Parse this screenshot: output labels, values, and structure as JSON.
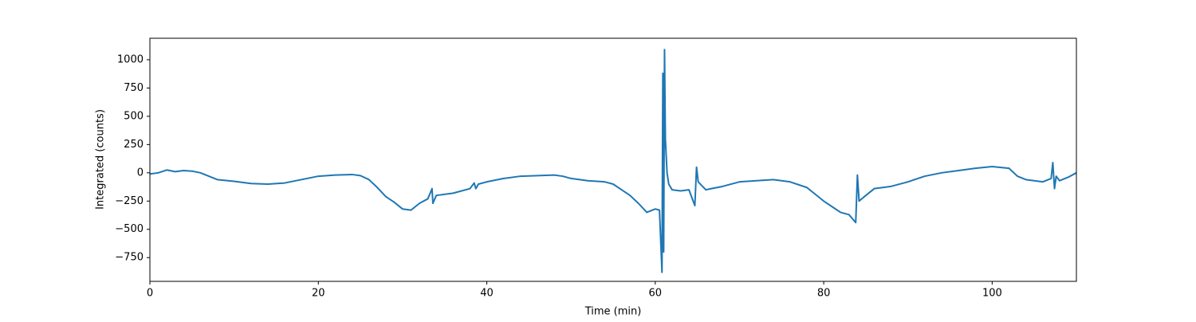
{
  "chart_data": {
    "type": "line",
    "xlabel": "Time (min)",
    "ylabel": "Integrated (counts)",
    "color": "#1f77b4",
    "x": [
      0,
      1,
      2,
      3,
      4,
      5,
      6,
      7,
      8,
      10,
      12,
      14,
      16,
      18,
      20,
      22,
      24,
      25,
      26,
      27,
      28,
      29,
      30,
      31,
      32,
      33,
      33.5,
      33.6,
      34,
      36,
      38,
      38.5,
      38.7,
      39,
      40,
      42,
      44,
      46,
      48,
      49,
      50,
      52,
      54,
      55,
      56,
      57,
      58,
      59,
      60,
      60.5,
      60.8,
      60.9,
      61.0,
      61.1,
      61.2,
      61.4,
      61.6,
      62,
      63,
      64,
      64.7,
      64.9,
      65.1,
      66,
      68,
      70,
      72,
      74,
      76,
      78,
      80,
      81,
      82,
      83,
      83.8,
      84,
      84.2,
      85,
      86,
      88,
      90,
      92,
      94,
      96,
      98,
      100,
      102,
      103,
      104,
      106,
      107,
      107.2,
      107.4,
      107.6,
      108,
      109,
      110
    ],
    "values": [
      -10,
      0,
      25,
      10,
      20,
      15,
      0,
      -30,
      -60,
      -75,
      -95,
      -100,
      -90,
      -60,
      -30,
      -20,
      -15,
      -25,
      -60,
      -130,
      -210,
      -260,
      -320,
      -330,
      -270,
      -230,
      -140,
      -270,
      -200,
      -180,
      -140,
      -90,
      -140,
      -100,
      -80,
      -50,
      -30,
      -25,
      -20,
      -30,
      -50,
      -70,
      -80,
      -100,
      -150,
      -200,
      -270,
      -350,
      -320,
      -330,
      -880,
      880,
      -700,
      1090,
      300,
      0,
      -100,
      -150,
      -160,
      -150,
      -290,
      50,
      -80,
      -150,
      -120,
      -80,
      -70,
      -60,
      -80,
      -130,
      -250,
      -300,
      -350,
      -370,
      -440,
      -20,
      -250,
      -200,
      -140,
      -120,
      -80,
      -30,
      0,
      20,
      40,
      55,
      40,
      -30,
      -60,
      -80,
      -50,
      90,
      -140,
      -30,
      -70,
      -40,
      0
    ],
    "xlim": [
      0,
      110
    ],
    "xticks": [
      0,
      20,
      40,
      60,
      80,
      100
    ],
    "ylim": [
      -960,
      1190
    ],
    "yticks": [
      {
        "value": -750,
        "label": "−750"
      },
      {
        "value": -500,
        "label": "−500"
      },
      {
        "value": -250,
        "label": "−250"
      },
      0,
      250,
      500,
      750,
      1000
    ]
  }
}
